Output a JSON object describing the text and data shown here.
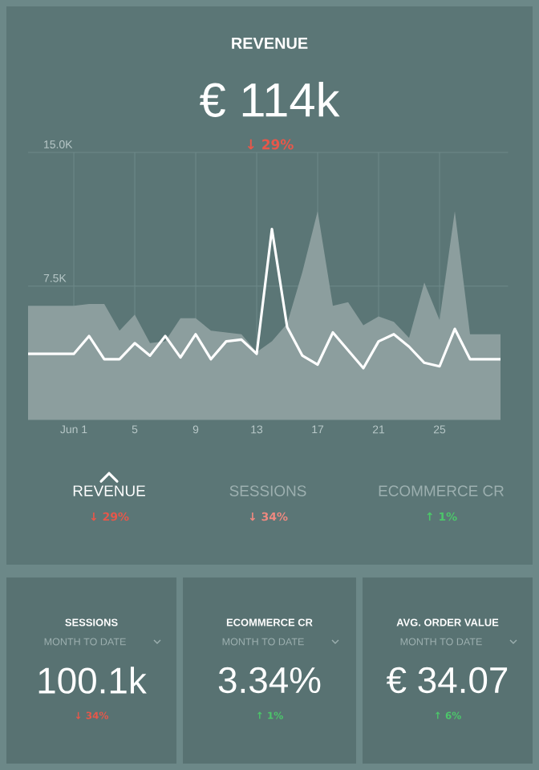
{
  "chart_data": [
    {
      "type": "line",
      "title": "REVENUE",
      "subtitle": "€ 114k",
      "annotations": [
        "↓ 29%"
      ],
      "x": [
        -2,
        1,
        2,
        3,
        4,
        5,
        6,
        7,
        8,
        9,
        10,
        11,
        12,
        13,
        14,
        15,
        16,
        17,
        18,
        19,
        20,
        21,
        22,
        23,
        24,
        25,
        26,
        27,
        29
      ],
      "xlim": [
        -2,
        29.5
      ],
      "ylim": [
        0,
        15
      ],
      "xticks": [
        {
          "value": 1,
          "label": "Jun 1"
        },
        5,
        9,
        13,
        17,
        21,
        25
      ],
      "yticks": [
        {
          "value": 7.5,
          "label": "7.5K"
        },
        {
          "value": 15,
          "label": "15.0K"
        }
      ],
      "grid": true,
      "series": [
        {
          "type": "area",
          "color": "#8c9e9e",
          "values": [
            6.4,
            6.4,
            6.5,
            6.5,
            5.0,
            5.9,
            4.3,
            4.4,
            5.7,
            5.7,
            5.0,
            4.9,
            4.8,
            3.8,
            4.4,
            5.4,
            8.3,
            11.7,
            6.4,
            6.6,
            5.3,
            5.8,
            5.5,
            4.6,
            7.7,
            5.6,
            11.7,
            4.8,
            4.8
          ]
        },
        {
          "color": "#ffffff",
          "values": [
            3.7,
            3.7,
            4.7,
            3.4,
            3.4,
            4.3,
            3.6,
            4.7,
            3.5,
            4.8,
            3.4,
            4.4,
            4.5,
            3.7,
            10.7,
            5.2,
            3.6,
            3.1,
            4.9,
            3.9,
            2.9,
            4.4,
            4.8,
            4.1,
            3.2,
            3.0,
            5.1,
            3.4,
            3.4
          ]
        }
      ]
    },
    {
      "type": "other",
      "annotations": [
        "REVENUE",
        "↓ 29%",
        "SESSIONS",
        "↓ 34%",
        "ECOMMERCE CR",
        "↑ 1%"
      ]
    },
    {
      "type": "other",
      "title": "SESSIONS",
      "subtitle": "MONTH TO DATE",
      "annotations": [
        "100.1k",
        "↓ 34%"
      ]
    },
    {
      "type": "other",
      "title": "ECOMMERCE CR",
      "subtitle": "MONTH TO DATE",
      "annotations": [
        "3.34%",
        "↑ 1%"
      ]
    },
    {
      "type": "other",
      "title": "AVG. ORDER VALUE",
      "subtitle": "MONTH TO DATE",
      "annotations": [
        "€ 34.07",
        "↑ 6%"
      ]
    }
  ]
}
